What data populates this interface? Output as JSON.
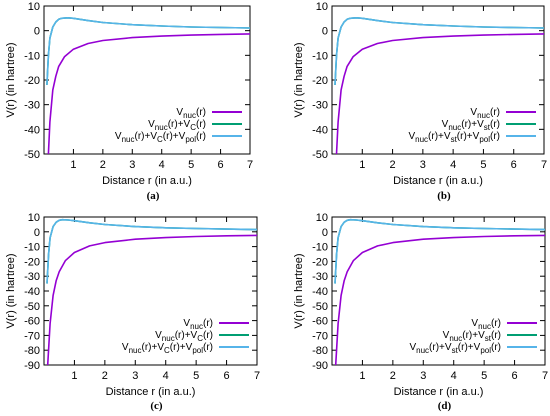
{
  "colors": {
    "purple": "#9400d3",
    "green": "#009e73",
    "cyan": "#56b4e9"
  },
  "chart_data": [
    {
      "type": "line",
      "caption": "(a)",
      "xlabel": "Distance r (in a.u.)",
      "ylabel": "V(r) (in hartree)",
      "xlim": [
        0,
        7
      ],
      "ylim": [
        -50,
        10
      ],
      "xticks": [
        1,
        2,
        3,
        4,
        5,
        6,
        7
      ],
      "yticks": [
        10,
        0,
        -10,
        -20,
        -30,
        -40,
        -50
      ],
      "legend": "right",
      "series": [
        {
          "name": "Vnuc(r)",
          "color": "#9400d3",
          "x": [
            0.15,
            0.2,
            0.3,
            0.4,
            0.5,
            0.7,
            1.0,
            1.5,
            2.0,
            3.0,
            4.0,
            5.0,
            6.0,
            7.0
          ],
          "y": [
            -50,
            -37,
            -24,
            -18.5,
            -14.5,
            -10.5,
            -7.5,
            -5.2,
            -4.0,
            -2.8,
            -2.2,
            -1.8,
            -1.5,
            -1.3
          ]
        },
        {
          "name": "Vnuc(r)+VC(r)",
          "color": "#009e73",
          "x": [
            0.1,
            0.15,
            0.2,
            0.3,
            0.4,
            0.5,
            0.6,
            0.8,
            1.0,
            1.5,
            2.0,
            3.0,
            4.0,
            5.0,
            6.0,
            7.0
          ],
          "y": [
            -22,
            -10,
            -3,
            1.5,
            3.5,
            4.6,
            5.0,
            5.2,
            5.0,
            4.1,
            3.3,
            2.4,
            1.9,
            1.5,
            1.3,
            1.1
          ]
        },
        {
          "name": "Vnuc(r)+VC(r)+Vpol(r)",
          "color": "#56b4e9",
          "x": [
            0.1,
            0.15,
            0.2,
            0.3,
            0.4,
            0.5,
            0.6,
            0.8,
            1.0,
            1.5,
            2.0,
            3.0,
            4.0,
            5.0,
            6.0,
            7.0
          ],
          "y": [
            -22,
            -10,
            -3,
            1.5,
            3.5,
            4.6,
            5.0,
            5.2,
            5.0,
            4.1,
            3.3,
            2.4,
            1.9,
            1.5,
            1.3,
            1.1
          ]
        }
      ]
    },
    {
      "type": "line",
      "caption": "(b)",
      "xlabel": "Distance r (in a.u.)",
      "ylabel": "V(r) (in hartree)",
      "xlim": [
        0,
        7
      ],
      "ylim": [
        -50,
        10
      ],
      "xticks": [
        1,
        2,
        3,
        4,
        5,
        6,
        7
      ],
      "yticks": [
        10,
        0,
        -10,
        -20,
        -30,
        -40,
        -50
      ],
      "legend": "right",
      "series": [
        {
          "name": "Vnuc(r)",
          "color": "#9400d3",
          "x": [
            0.15,
            0.2,
            0.3,
            0.4,
            0.5,
            0.7,
            1.0,
            1.5,
            2.0,
            3.0,
            4.0,
            5.0,
            6.0,
            7.0
          ],
          "y": [
            -50,
            -37,
            -24,
            -18.5,
            -14.5,
            -10.5,
            -7.5,
            -5.2,
            -4.0,
            -2.8,
            -2.2,
            -1.8,
            -1.5,
            -1.3
          ]
        },
        {
          "name": "Vnuc(r)+Vst(r)",
          "color": "#009e73",
          "x": [
            0.1,
            0.15,
            0.2,
            0.3,
            0.4,
            0.5,
            0.6,
            0.8,
            1.0,
            1.5,
            2.0,
            3.0,
            4.0,
            5.0,
            6.0,
            7.0
          ],
          "y": [
            -22,
            -10,
            -3,
            1.5,
            3.5,
            4.6,
            5.0,
            5.2,
            5.0,
            4.1,
            3.3,
            2.4,
            1.9,
            1.5,
            1.3,
            1.1
          ]
        },
        {
          "name": "Vnuc(r)+Vst(r)+Vpol(r)",
          "color": "#56b4e9",
          "x": [
            0.1,
            0.15,
            0.2,
            0.3,
            0.4,
            0.5,
            0.6,
            0.8,
            1.0,
            1.5,
            2.0,
            3.0,
            4.0,
            5.0,
            6.0,
            7.0
          ],
          "y": [
            -22,
            -10,
            -3,
            1.5,
            3.5,
            4.6,
            5.0,
            5.2,
            5.0,
            4.1,
            3.3,
            2.4,
            1.9,
            1.5,
            1.3,
            1.1
          ]
        }
      ]
    },
    {
      "type": "line",
      "caption": "(c)",
      "xlabel": "Distance r (in a.u.)",
      "ylabel": "V(r) (in hartree)",
      "xlim": [
        0,
        7
      ],
      "ylim": [
        -90,
        10
      ],
      "xticks": [
        1,
        2,
        3,
        4,
        5,
        6,
        7
      ],
      "yticks": [
        10,
        0,
        -10,
        -20,
        -30,
        -40,
        -50,
        -60,
        -70,
        -80,
        -90
      ],
      "legend": "right",
      "series": [
        {
          "name": "Vnuc(r)",
          "color": "#9400d3",
          "x": [
            0.12,
            0.2,
            0.3,
            0.4,
            0.5,
            0.7,
            1.0,
            1.5,
            2.0,
            3.0,
            4.0,
            5.0,
            6.0,
            7.0
          ],
          "y": [
            -90,
            -62,
            -43,
            -33,
            -27,
            -19.5,
            -14,
            -9.5,
            -7.3,
            -5.0,
            -3.9,
            -3.2,
            -2.7,
            -2.4
          ]
        },
        {
          "name": "Vnuc(r)+VC(r)",
          "color": "#009e73",
          "x": [
            0.1,
            0.15,
            0.2,
            0.3,
            0.4,
            0.5,
            0.6,
            0.8,
            1.0,
            1.5,
            2.0,
            3.0,
            4.0,
            5.0,
            6.0,
            7.0
          ],
          "y": [
            -35,
            -15,
            -4,
            3.5,
            6.5,
            7.8,
            8.2,
            8.0,
            7.5,
            6.1,
            4.9,
            3.5,
            2.7,
            2.2,
            1.8,
            1.5
          ]
        },
        {
          "name": "Vnuc(r)+VC(r)+Vpol(r)",
          "color": "#56b4e9",
          "x": [
            0.1,
            0.15,
            0.2,
            0.3,
            0.4,
            0.5,
            0.6,
            0.8,
            1.0,
            1.5,
            2.0,
            3.0,
            4.0,
            5.0,
            6.0,
            7.0
          ],
          "y": [
            -35,
            -15,
            -4,
            3.5,
            6.5,
            7.8,
            8.2,
            8.0,
            7.5,
            6.1,
            4.9,
            3.5,
            2.7,
            2.2,
            1.8,
            1.5
          ]
        }
      ]
    },
    {
      "type": "line",
      "caption": "(d)",
      "xlabel": "Distance r (in a.u.)",
      "ylabel": "V(r) (in hartree)",
      "xlim": [
        0,
        7
      ],
      "ylim": [
        -90,
        10
      ],
      "xticks": [
        1,
        2,
        3,
        4,
        5,
        6,
        7
      ],
      "yticks": [
        10,
        0,
        -10,
        -20,
        -30,
        -40,
        -50,
        -60,
        -70,
        -80,
        -90
      ],
      "legend": "right",
      "series": [
        {
          "name": "Vnuc(r)",
          "color": "#9400d3",
          "x": [
            0.12,
            0.2,
            0.3,
            0.4,
            0.5,
            0.7,
            1.0,
            1.5,
            2.0,
            3.0,
            4.0,
            5.0,
            6.0,
            7.0
          ],
          "y": [
            -90,
            -62,
            -43,
            -33,
            -27,
            -19.5,
            -14,
            -9.5,
            -7.3,
            -5.0,
            -3.9,
            -3.2,
            -2.7,
            -2.4
          ]
        },
        {
          "name": "Vnuc(r)+Vst(r)",
          "color": "#009e73",
          "x": [
            0.1,
            0.15,
            0.2,
            0.3,
            0.4,
            0.5,
            0.6,
            0.8,
            1.0,
            1.5,
            2.0,
            3.0,
            4.0,
            5.0,
            6.0,
            7.0
          ],
          "y": [
            -35,
            -15,
            -4,
            3.5,
            6.5,
            7.8,
            8.2,
            8.0,
            7.5,
            6.1,
            4.9,
            3.5,
            2.7,
            2.2,
            1.8,
            1.5
          ]
        },
        {
          "name": "Vnuc(r)+Vst(r)+Vpol(r)",
          "color": "#56b4e9",
          "x": [
            0.1,
            0.15,
            0.2,
            0.3,
            0.4,
            0.5,
            0.6,
            0.8,
            1.0,
            1.5,
            2.0,
            3.0,
            4.0,
            5.0,
            6.0,
            7.0
          ],
          "y": [
            -35,
            -15,
            -4,
            3.5,
            6.5,
            7.8,
            8.2,
            8.0,
            7.5,
            6.1,
            4.9,
            3.5,
            2.7,
            2.2,
            1.8,
            1.5
          ]
        }
      ]
    }
  ]
}
